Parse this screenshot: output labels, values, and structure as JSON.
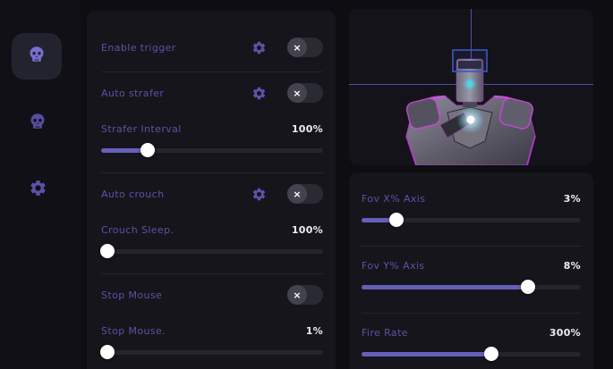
{
  "colors": {
    "accent": "#665fb8",
    "label": "#5a54a6",
    "panel_bg": "#15151b",
    "robot_rim_magenta": "#c437d8",
    "robot_face_cyan": "#3fd6e8",
    "crosshair": "#4d51a8"
  },
  "sidebar": {
    "items": [
      {
        "icon": "skull-icon",
        "active": true
      },
      {
        "icon": "skull-icon",
        "active": false
      },
      {
        "icon": "gear-icon",
        "active": false
      }
    ]
  },
  "trigger_panel": {
    "toggle_off_glyph": "×",
    "rows": [
      {
        "type": "toggle",
        "label": "Enable trigger",
        "has_gear": true,
        "enabled": false
      },
      {
        "type": "toggle",
        "label": "Auto strafer",
        "has_gear": true,
        "enabled": false
      },
      {
        "type": "slider",
        "label": "Strafer Interval",
        "value": "100%",
        "fill_pct": 21
      },
      {
        "type": "toggle",
        "label": "Auto crouch",
        "has_gear": true,
        "enabled": false
      },
      {
        "type": "slider",
        "label": "Crouch Sleep.",
        "value": "100%",
        "fill_pct": 3
      },
      {
        "type": "toggle",
        "label": "Stop Mouse",
        "has_gear": false,
        "enabled": false
      },
      {
        "type": "slider",
        "label": "Stop Mouse.",
        "value": "1%",
        "fill_pct": 3
      }
    ]
  },
  "aim_panel": {
    "rows": [
      {
        "label": "Fov X% Axis",
        "value": "3%",
        "fill_pct": 16
      },
      {
        "label": "Fov Y% Axis",
        "value": "8%",
        "fill_pct": 76
      },
      {
        "label": "Fire Rate",
        "value": "300%",
        "fill_pct": 59
      }
    ]
  },
  "viewport": {
    "preview": "robot-model-with-crosshair"
  }
}
